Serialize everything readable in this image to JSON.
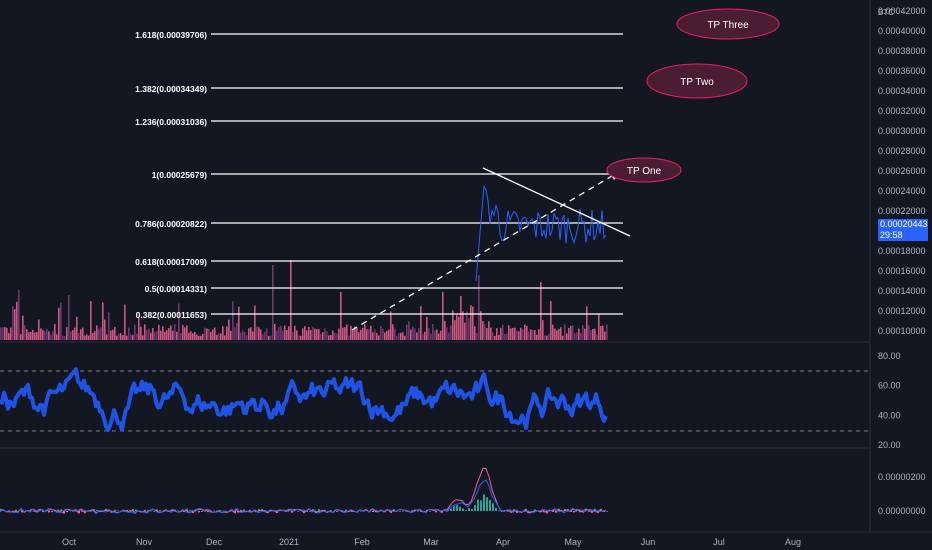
{
  "instrument": {
    "quote_currency": "BTC"
  },
  "price_axis": {
    "ticks": [
      "0.00042000",
      "0.00040000",
      "0.00038000",
      "0.00036000",
      "0.00034000",
      "0.00032000",
      "0.00030000",
      "0.00028000",
      "0.00026000",
      "0.00024000",
      "0.00022000",
      "0.00018000",
      "0.00016000",
      "0.00014000",
      "0.00012000",
      "0.00010000"
    ],
    "last_price": "0.00020443",
    "countdown": "29:58",
    "last_price_color": "#2962ff"
  },
  "fibonacci_levels": [
    {
      "label": "1.618(0.00039706)",
      "ratio": 1.618,
      "price": 0.00039706
    },
    {
      "label": "1.382(0.00034349)",
      "ratio": 1.382,
      "price": 0.00034349
    },
    {
      "label": "1.236(0.00031036)",
      "ratio": 1.236,
      "price": 0.00031036
    },
    {
      "label": "1(0.00025679)",
      "ratio": 1,
      "price": 0.00025679
    },
    {
      "label": "0.786(0.00020822)",
      "ratio": 0.786,
      "price": 0.00020822
    },
    {
      "label": "0.618(0.00017009)",
      "ratio": 0.618,
      "price": 0.00017009
    },
    {
      "label": "0.5(0.00014331)",
      "ratio": 0.5,
      "price": 0.00014331
    },
    {
      "label": "0.382(0.00011653)",
      "ratio": 0.382,
      "price": 0.00011653
    }
  ],
  "targets": [
    {
      "label": "TP Three"
    },
    {
      "label": "TP Two"
    },
    {
      "label": "TP One"
    }
  ],
  "oscillator_axis": {
    "ticks": [
      "80.00",
      "60.00",
      "40.00",
      "20.00"
    ]
  },
  "macd_axis": {
    "ticks": [
      "0.00000200",
      "0.00000000"
    ]
  },
  "time_axis": {
    "labels": [
      "Oct",
      "Nov",
      "Dec",
      "2021",
      "Feb",
      "Mar",
      "Apr",
      "May",
      "Jun",
      "Jul",
      "Aug"
    ]
  },
  "colors": {
    "background": "#131722",
    "volume_bar": "#f06292",
    "oscillator_line": "#1e53e5",
    "target_ellipse": "#e91e63",
    "fib_line": "#ffffff"
  }
}
